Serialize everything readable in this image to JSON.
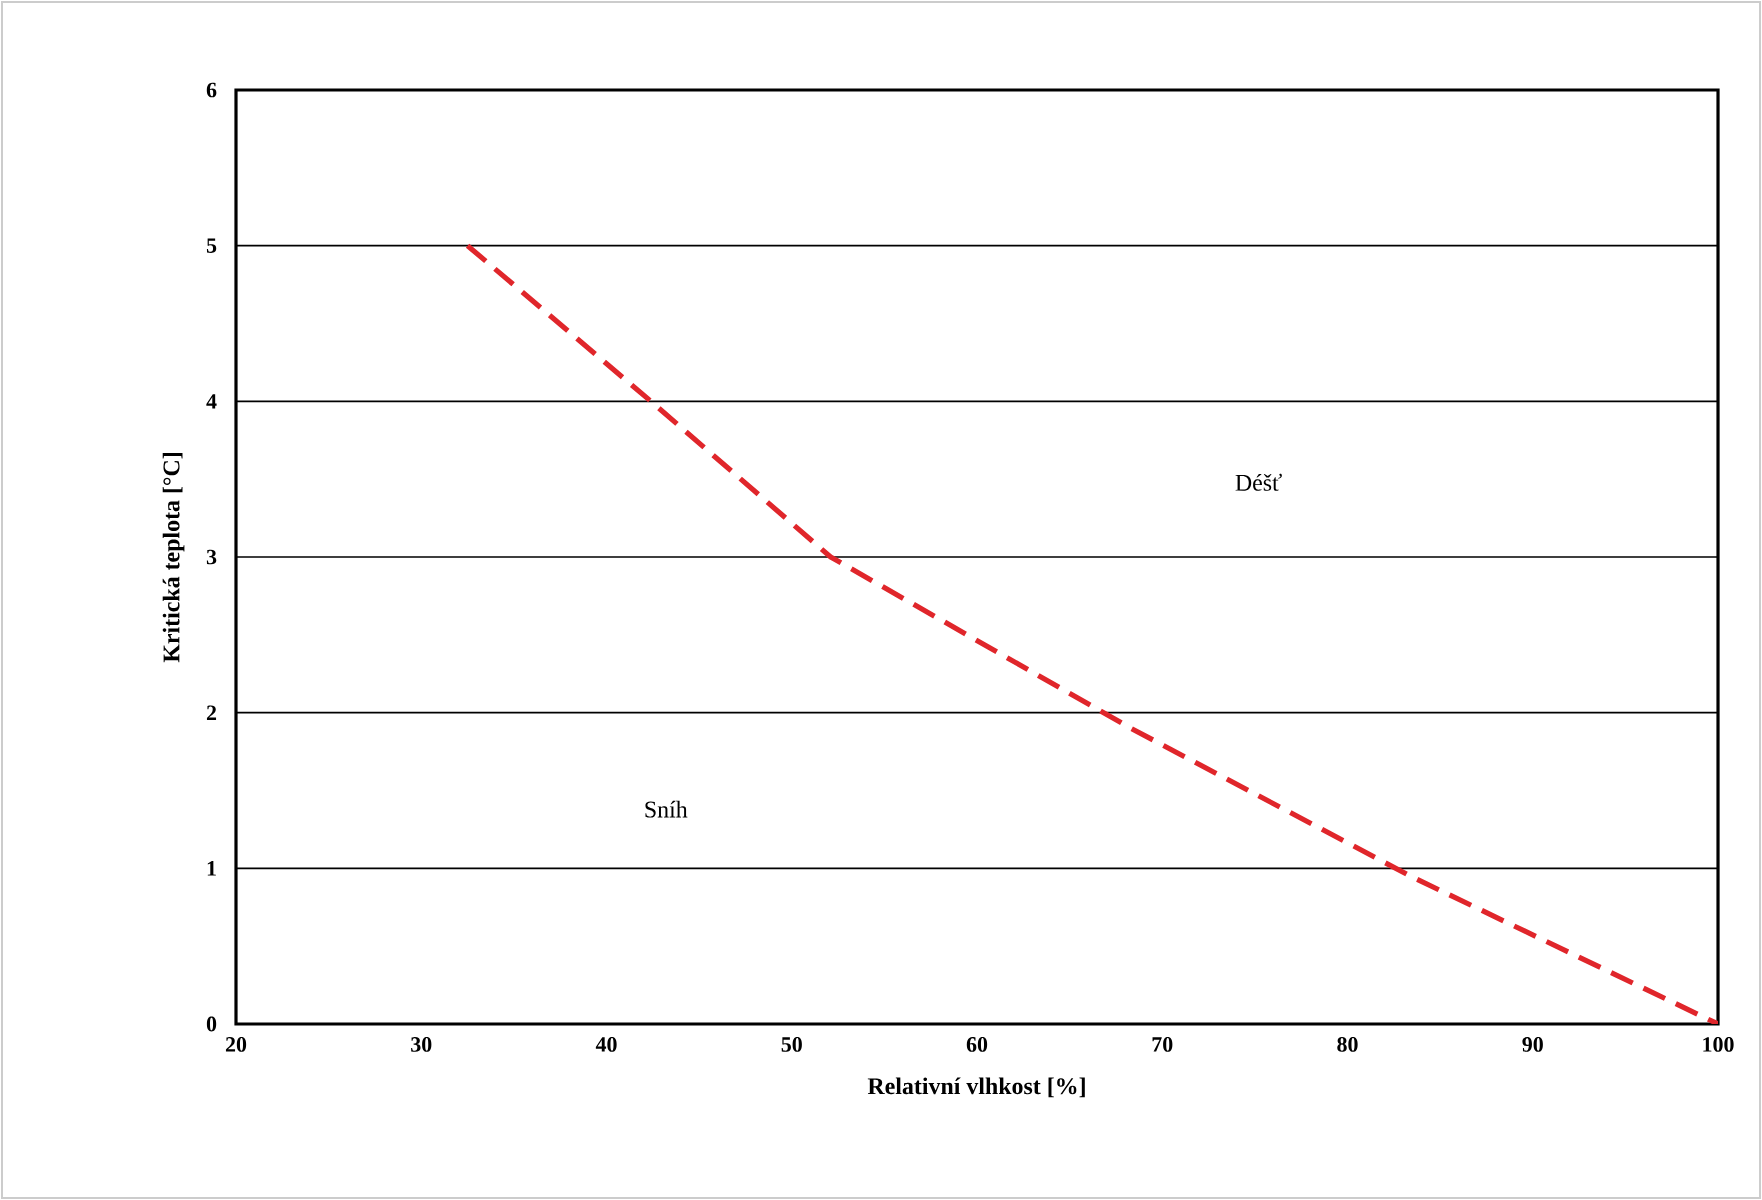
{
  "chart_data": {
    "type": "line",
    "xlabel": "Relativní vlhkost [%]",
    "ylabel": "Kritická teplota [°C]",
    "annotations": [
      "Déšť",
      "Sníh"
    ],
    "series": [
      {
        "color": "#e0262b",
        "line_style": "dashed",
        "x": [
          32.5,
          42.4,
          52.1,
          68.3,
          83.4,
          100
        ],
        "values": [
          5,
          4,
          3,
          1.9,
          0.95,
          0
        ]
      }
    ],
    "xlim": [
      20,
      100
    ],
    "xticks": [
      20,
      30,
      40,
      50,
      60,
      70,
      80,
      90,
      100
    ],
    "ylim": [
      0,
      6
    ],
    "yticks": [
      0,
      1,
      2,
      3,
      4,
      5,
      6
    ],
    "grid": "y",
    "marker": "none"
  }
}
